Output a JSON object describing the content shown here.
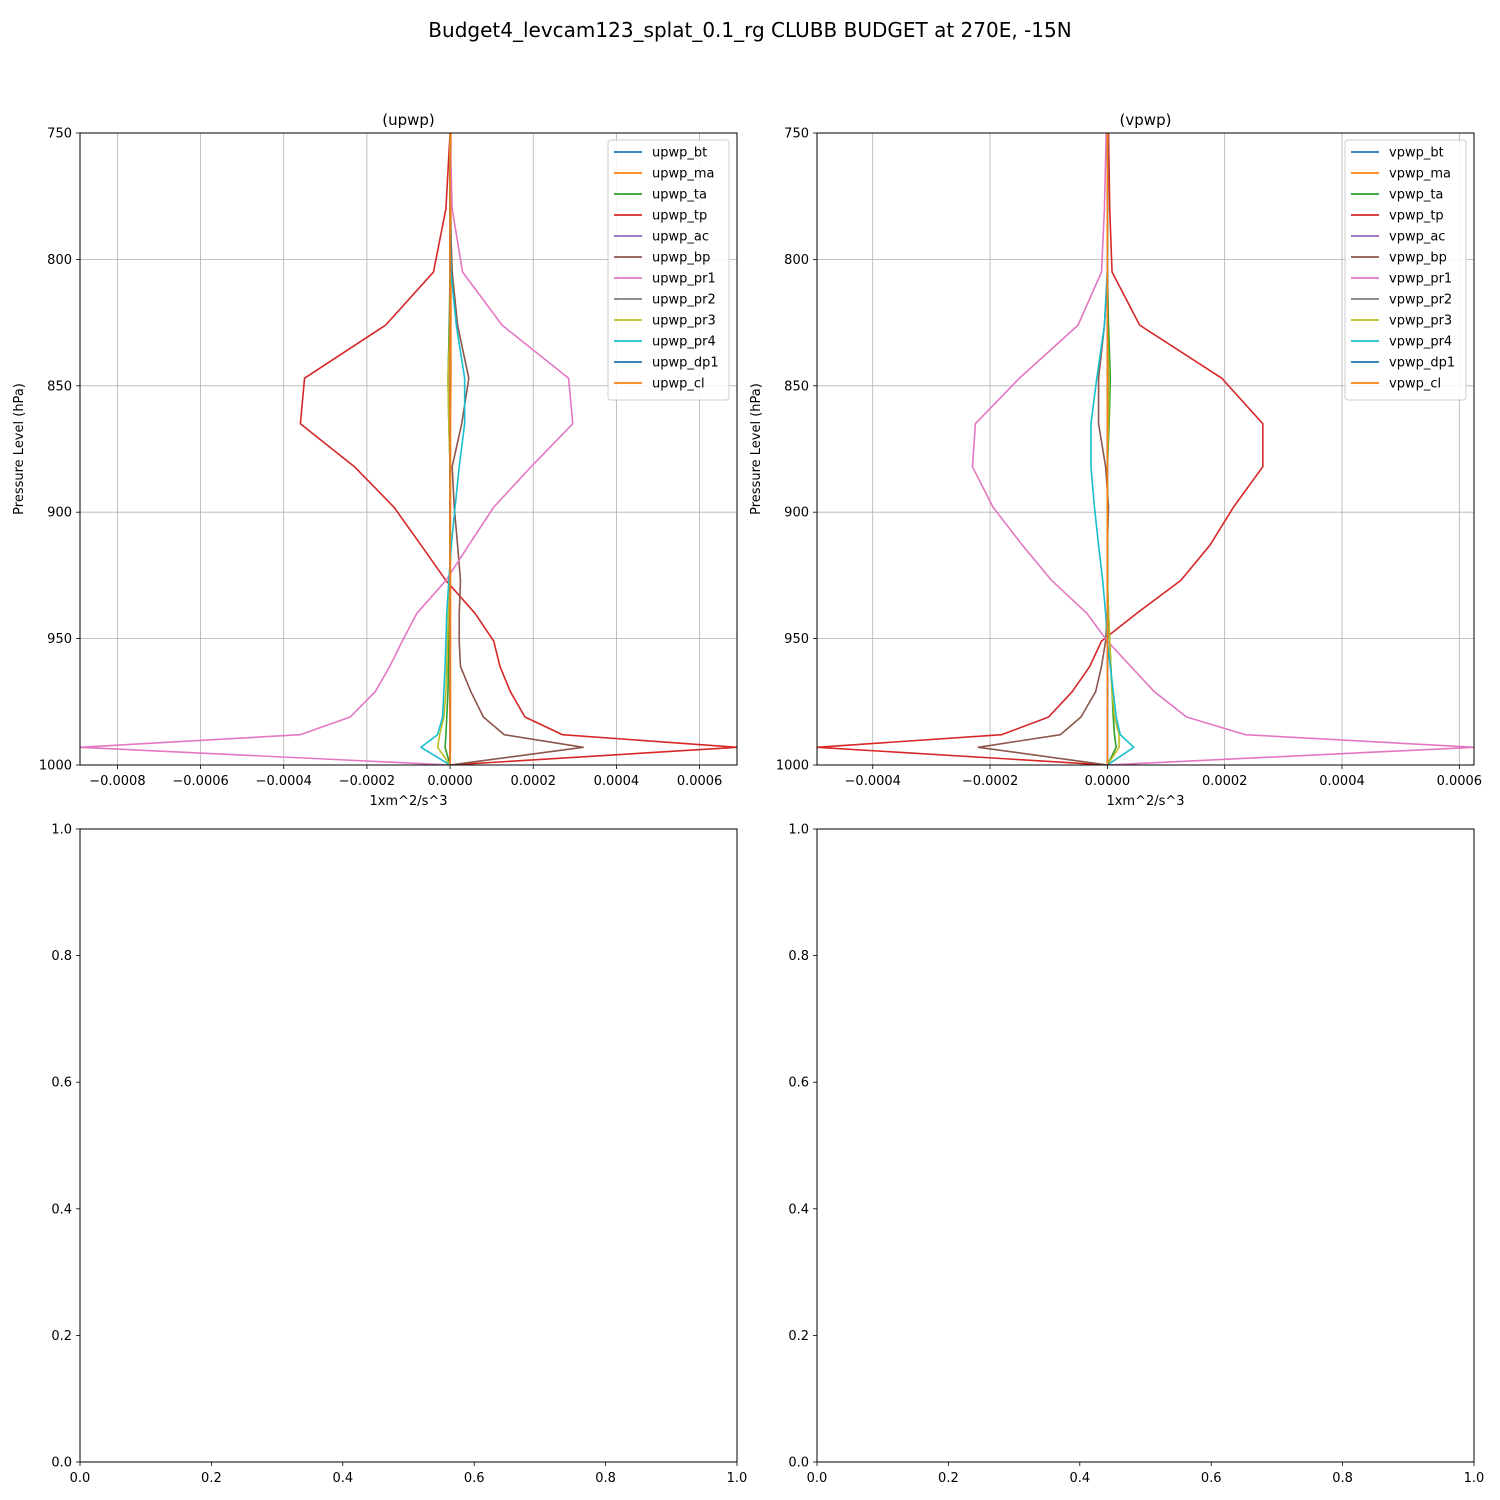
{
  "suptitle": "Budget4_levcam123_splat_0.1_rg CLUBB BUDGET at 270E, -15N",
  "chart_data": [
    {
      "type": "line",
      "title": "(upwp)",
      "xlabel": "1xm^2/s^3",
      "ylabel": "Pressure Level (hPa)",
      "xlim": [
        -0.00089,
        0.00069
      ],
      "ylim": [
        1000,
        750
      ],
      "y_inverted": true,
      "grid": true,
      "legend_position": "top-right",
      "xticks": [
        -0.0008,
        -0.0006,
        -0.0004,
        -0.0002,
        0.0,
        0.0002,
        0.0004,
        0.0006
      ],
      "xtick_labels": [
        "−0.0008",
        "−0.0006",
        "−0.0004",
        "−0.0002",
        "0.0000",
        "0.0002",
        "0.0004",
        "0.0006"
      ],
      "yticks": [
        750,
        800,
        850,
        900,
        950,
        1000
      ],
      "ytick_labels": [
        "750",
        "800",
        "850",
        "900",
        "950",
        "1000"
      ],
      "levels": [
        750,
        780,
        805,
        826,
        847,
        865,
        882,
        898,
        913,
        927,
        940,
        951,
        961,
        971,
        981,
        988,
        993,
        1000
      ],
      "series": [
        {
          "name": "upwp_bt",
          "color": "#1f77b4",
          "values": [
            0,
            0,
            0,
            0,
            0,
            0,
            0,
            0,
            0,
            0,
            0,
            0,
            0,
            0,
            0,
            0,
            0,
            0
          ]
        },
        {
          "name": "upwp_ma",
          "color": "#ff7f0e",
          "values": [
            2e-06,
            2e-06,
            2e-06,
            2e-06,
            2e-06,
            1e-06,
            1e-06,
            1e-06,
            1e-06,
            1e-06,
            1e-06,
            1e-06,
            1e-06,
            1e-06,
            1e-06,
            1e-06,
            1e-06,
            0
          ]
        },
        {
          "name": "upwp_ta",
          "color": "#2ca02c",
          "values": [
            0,
            0,
            0,
            -2e-06,
            -5e-06,
            -3e-06,
            0,
            0,
            0,
            0,
            -2e-06,
            -3e-06,
            -4e-06,
            -5e-06,
            -8e-06,
            -1e-05,
            -1.2e-05,
            0
          ]
        },
        {
          "name": "upwp_tp",
          "color": "#d62728",
          "values": [
            0,
            -1e-05,
            -4e-05,
            -0.000155,
            -0.00035,
            -0.00036,
            -0.00023,
            -0.000135,
            -7e-05,
            -1e-05,
            6e-05,
            0.000105,
            0.00012,
            0.000145,
            0.00018,
            0.00027,
            0.00069,
            0
          ]
        },
        {
          "name": "upwp_ac",
          "color": "#9467bd",
          "values": [
            0,
            0,
            0,
            0,
            0,
            0,
            0,
            0,
            0,
            0,
            0,
            0,
            0,
            0,
            0,
            0,
            0,
            0
          ]
        },
        {
          "name": "upwp_bp",
          "color": "#8c564b",
          "values": [
            0,
            0,
            5e-06,
            1.8e-05,
            4.5e-05,
            2.8e-05,
            5e-06,
            1e-05,
            1.8e-05,
            2.5e-05,
            2.2e-05,
            2.2e-05,
            2.5e-05,
            5e-05,
            8e-05,
            0.00013,
            0.00032,
            0
          ]
        },
        {
          "name": "upwp_pr1",
          "color": "#e377c2",
          "values": [
            0,
            5e-06,
            3e-05,
            0.000125,
            0.000285,
            0.000295,
            0.000195,
            0.000105,
            4.5e-05,
            -1e-05,
            -8e-05,
            -0.000115,
            -0.000145,
            -0.00018,
            -0.00024,
            -0.00036,
            -0.00089,
            0
          ]
        },
        {
          "name": "upwp_pr2",
          "color": "#7f7f7f",
          "values": [
            0,
            0,
            0,
            0,
            0,
            0,
            0,
            0,
            0,
            0,
            0,
            0,
            0,
            0,
            0,
            0,
            0,
            0
          ]
        },
        {
          "name": "upwp_pr3",
          "color": "#bcbd22",
          "values": [
            0,
            0,
            0,
            0,
            -5e-06,
            -3e-06,
            0,
            0,
            0,
            0,
            -4e-06,
            -6e-06,
            -8e-06,
            -1e-05,
            -1.5e-05,
            -2.5e-05,
            -3e-05,
            0
          ]
        },
        {
          "name": "upwp_pr4",
          "color": "#17becf",
          "values": [
            0,
            0,
            2e-06,
            1.5e-05,
            3.5e-05,
            3.5e-05,
            2.2e-05,
            1.2e-05,
            3e-06,
            -3e-06,
            -8e-06,
            -1e-05,
            -1.2e-05,
            -1.5e-05,
            -1.8e-05,
            -3e-05,
            -7e-05,
            0
          ]
        },
        {
          "name": "upwp_dp1",
          "color": "#1f77b4",
          "values": [
            0,
            0,
            0,
            0,
            0,
            0,
            0,
            0,
            0,
            0,
            0,
            0,
            0,
            0,
            0,
            0,
            0,
            0
          ]
        },
        {
          "name": "upwp_cl",
          "color": "#ff7f0e",
          "values": [
            0,
            0,
            0,
            0,
            0,
            0,
            0,
            0,
            0,
            0,
            0,
            0,
            0,
            0,
            0,
            0,
            0,
            0
          ]
        }
      ]
    },
    {
      "type": "line",
      "title": "(vpwp)",
      "xlabel": "1xm^2/s^3",
      "ylabel": "Pressure Level (hPa)",
      "xlim": [
        -0.000495,
        0.000625
      ],
      "ylim": [
        1000,
        750
      ],
      "y_inverted": true,
      "grid": true,
      "legend_position": "top-right",
      "xticks": [
        -0.0004,
        -0.0002,
        0.0,
        0.0002,
        0.0004,
        0.0006
      ],
      "xtick_labels": [
        "−0.0004",
        "−0.0002",
        "0.0000",
        "0.0002",
        "0.0004",
        "0.0006"
      ],
      "yticks": [
        750,
        800,
        850,
        900,
        950,
        1000
      ],
      "ytick_labels": [
        "750",
        "800",
        "850",
        "900",
        "950",
        "1000"
      ],
      "levels": [
        750,
        780,
        805,
        826,
        847,
        865,
        882,
        898,
        913,
        927,
        940,
        951,
        961,
        971,
        981,
        988,
        993,
        1000
      ],
      "series": [
        {
          "name": "vpwp_bt",
          "color": "#1f77b4",
          "values": [
            0,
            0,
            0,
            0,
            0,
            0,
            0,
            0,
            0,
            0,
            0,
            0,
            0,
            0,
            0,
            0,
            0,
            0
          ]
        },
        {
          "name": "vpwp_ma",
          "color": "#ff7f0e",
          "values": [
            0,
            0,
            0,
            0,
            0,
            0,
            0,
            0,
            0,
            0,
            0,
            0,
            0,
            0,
            0,
            0,
            0,
            0
          ]
        },
        {
          "name": "vpwp_ta",
          "color": "#2ca02c",
          "values": [
            0,
            0,
            0,
            2e-06,
            5e-06,
            3e-06,
            0,
            0,
            0,
            0,
            2e-06,
            4e-06,
            6e-06,
            8e-06,
            1e-05,
            1.2e-05,
            1.5e-05,
            0
          ]
        },
        {
          "name": "vpwp_tp",
          "color": "#d62728",
          "values": [
            2e-06,
            4e-06,
            8e-06,
            5.5e-05,
            0.000195,
            0.000265,
            0.000265,
            0.000215,
            0.000175,
            0.000125,
            5e-05,
            -1e-05,
            -3e-05,
            -6e-05,
            -0.0001,
            -0.00018,
            -0.000495,
            0
          ]
        },
        {
          "name": "vpwp_ac",
          "color": "#9467bd",
          "values": [
            0,
            0,
            0,
            0,
            0,
            0,
            0,
            0,
            0,
            0,
            0,
            0,
            0,
            0,
            0,
            0,
            0,
            0
          ]
        },
        {
          "name": "vpwp_bp",
          "color": "#8c564b",
          "values": [
            0,
            0,
            0,
            -5e-06,
            -1.5e-05,
            -1.5e-05,
            -3e-06,
            2e-06,
            0,
            0,
            0,
            -3e-06,
            -1e-05,
            -2e-05,
            -4.5e-05,
            -8e-05,
            -0.00022,
            0
          ]
        },
        {
          "name": "vpwp_pr1",
          "color": "#e377c2",
          "values": [
            -2e-06,
            -5e-06,
            -1e-05,
            -5e-05,
            -0.00015,
            -0.000225,
            -0.00023,
            -0.000195,
            -0.000145,
            -9.5e-05,
            -3.5e-05,
            0,
            4e-05,
            8e-05,
            0.000135,
            0.000235,
            0.000625,
            0
          ]
        },
        {
          "name": "vpwp_pr2",
          "color": "#7f7f7f",
          "values": [
            0,
            0,
            0,
            0,
            0,
            0,
            0,
            0,
            0,
            0,
            0,
            0,
            0,
            0,
            0,
            0,
            0,
            0
          ]
        },
        {
          "name": "vpwp_pr3",
          "color": "#bcbd22",
          "values": [
            0,
            0,
            0,
            0,
            3e-06,
            2e-06,
            0,
            0,
            0,
            0,
            2e-06,
            4e-06,
            6e-06,
            8e-06,
            1.2e-05,
            2e-05,
            2e-05,
            0
          ]
        },
        {
          "name": "vpwp_pr4",
          "color": "#17becf",
          "values": [
            0,
            0,
            0,
            -5e-06,
            -1.8e-05,
            -2.8e-05,
            -2.8e-05,
            -2.2e-05,
            -1.5e-05,
            -8e-06,
            -3e-06,
            0,
            5e-06,
            1e-05,
            1.5e-05,
            2.2e-05,
            4.5e-05,
            0
          ]
        },
        {
          "name": "vpwp_dp1",
          "color": "#1f77b4",
          "values": [
            0,
            0,
            0,
            0,
            0,
            0,
            0,
            0,
            0,
            0,
            0,
            0,
            0,
            0,
            0,
            0,
            0,
            0
          ]
        },
        {
          "name": "vpwp_cl",
          "color": "#ff7f0e",
          "values": [
            0,
            0,
            0,
            0,
            0,
            0,
            0,
            0,
            0,
            0,
            0,
            0,
            0,
            0,
            0,
            0,
            0,
            0
          ]
        }
      ]
    },
    {
      "type": "line",
      "title": "",
      "xlim": [
        0,
        1
      ],
      "ylim": [
        0,
        1
      ],
      "grid": false,
      "xticks": [
        0,
        0.2,
        0.4,
        0.6,
        0.8,
        1.0
      ],
      "xtick_labels": [
        "0.0",
        "0.2",
        "0.4",
        "0.6",
        "0.8",
        "1.0"
      ],
      "yticks": [
        0,
        0.2,
        0.4,
        0.6,
        0.8,
        1.0
      ],
      "ytick_labels": [
        "0.0",
        "0.2",
        "0.4",
        "0.6",
        "0.8",
        "1.0"
      ],
      "series": []
    },
    {
      "type": "line",
      "title": "",
      "xlim": [
        0,
        1
      ],
      "ylim": [
        0,
        1
      ],
      "grid": false,
      "xticks": [
        0,
        0.2,
        0.4,
        0.6,
        0.8,
        1.0
      ],
      "xtick_labels": [
        "0.0",
        "0.2",
        "0.4",
        "0.6",
        "0.8",
        "1.0"
      ],
      "yticks": [
        0,
        0.2,
        0.4,
        0.6,
        0.8,
        1.0
      ],
      "ytick_labels": [
        "0.0",
        "0.2",
        "0.4",
        "0.6",
        "0.8",
        "1.0"
      ],
      "series": []
    }
  ]
}
